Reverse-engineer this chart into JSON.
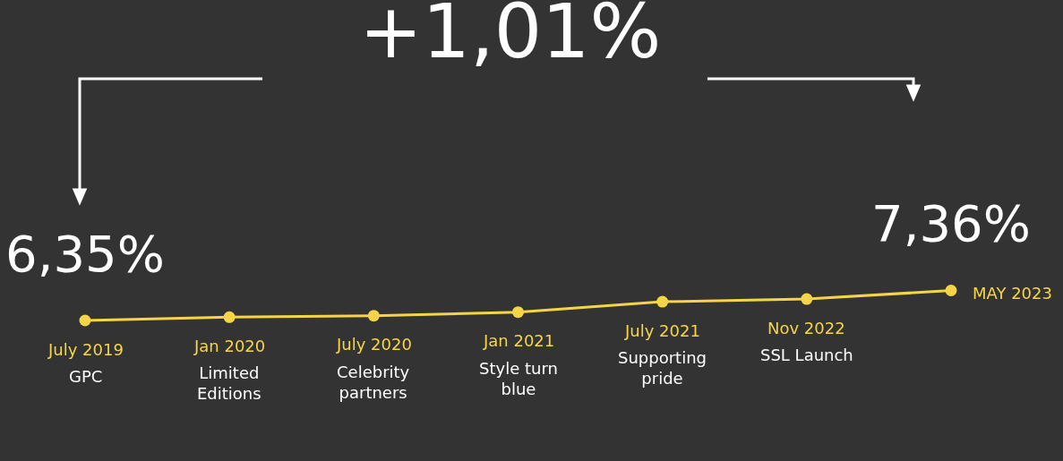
{
  "chart_data": {
    "type": "line",
    "title": "+1,01%",
    "categories": [
      "July 2019",
      "Jan 2020",
      "July 2020",
      "Jan 2021",
      "July 2021",
      "Nov 2022",
      "MAY 2023"
    ],
    "series": [
      {
        "color": "#f5d547",
        "values": [
          6.35,
          6.46,
          6.51,
          6.63,
          6.98,
          7.07,
          7.36
        ],
        "value_labels": [
          "6,35%",
          null,
          null,
          null,
          null,
          null,
          "7,36%"
        ]
      }
    ],
    "marker": "circle",
    "line_style": "solid",
    "annotations": [
      {
        "text": "GPC",
        "x": "July 2019",
        "y": 6.35
      },
      {
        "text": "Limited\nEditions",
        "x": "Jan 2020",
        "y": 6.46
      },
      {
        "text": "Celebrity\npartners",
        "x": "July 2020",
        "y": 6.51
      },
      {
        "text": "Style turn\nblue",
        "x": "Jan 2021",
        "y": 6.63
      },
      {
        "text": "Supporting\npride",
        "x": "July 2021",
        "y": 6.98
      },
      {
        "text": "SSL Launch",
        "x": "Nov 2022",
        "y": 7.07
      }
    ]
  }
}
